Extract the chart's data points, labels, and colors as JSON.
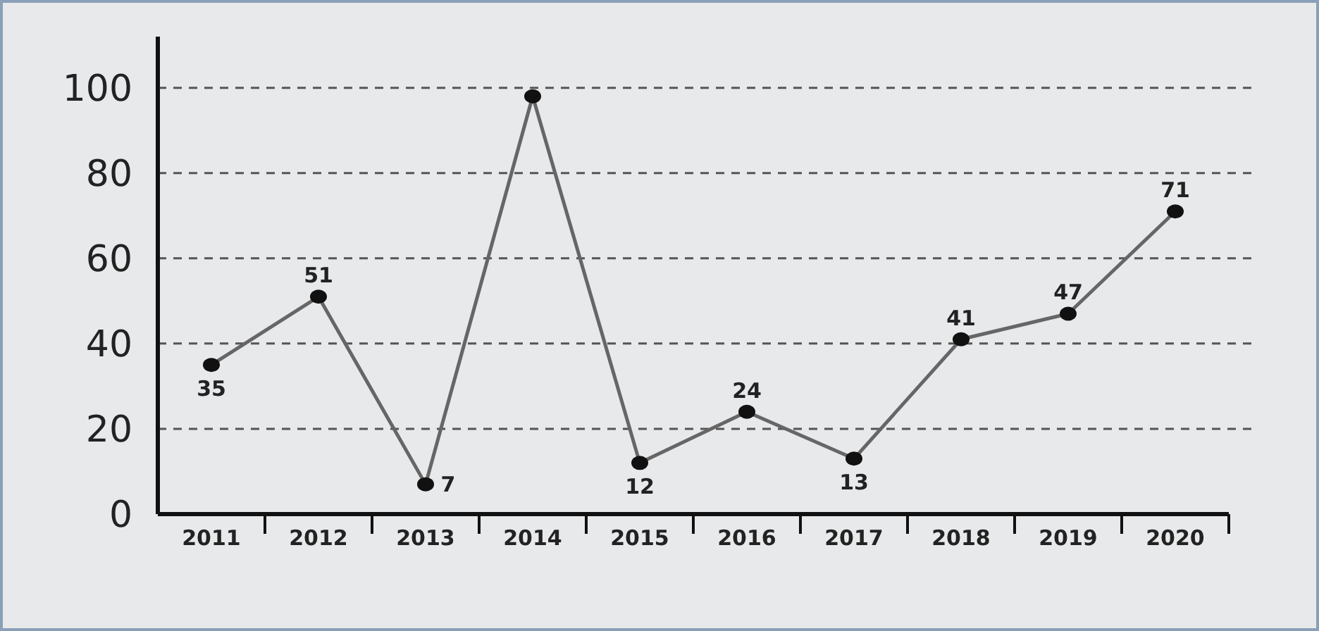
{
  "chart_data": {
    "type": "line",
    "categories": [
      "2011",
      "2012",
      "2013",
      "2014",
      "2015",
      "2016",
      "2017",
      "2018",
      "2019",
      "2020"
    ],
    "series": [
      {
        "color": "#666666",
        "values": [
          35,
          51,
          7,
          98,
          12,
          24,
          13,
          41,
          47,
          71
        ],
        "value_labels": [
          "35",
          "51",
          "7",
          null,
          "12",
          "24",
          "13",
          "41",
          "47",
          "71"
        ]
      }
    ],
    "ylim": [
      0,
      112
    ],
    "yticks": [
      0,
      20,
      40,
      60,
      80,
      100
    ],
    "grid": "y",
    "marker": "circle",
    "line_style": "solid"
  }
}
